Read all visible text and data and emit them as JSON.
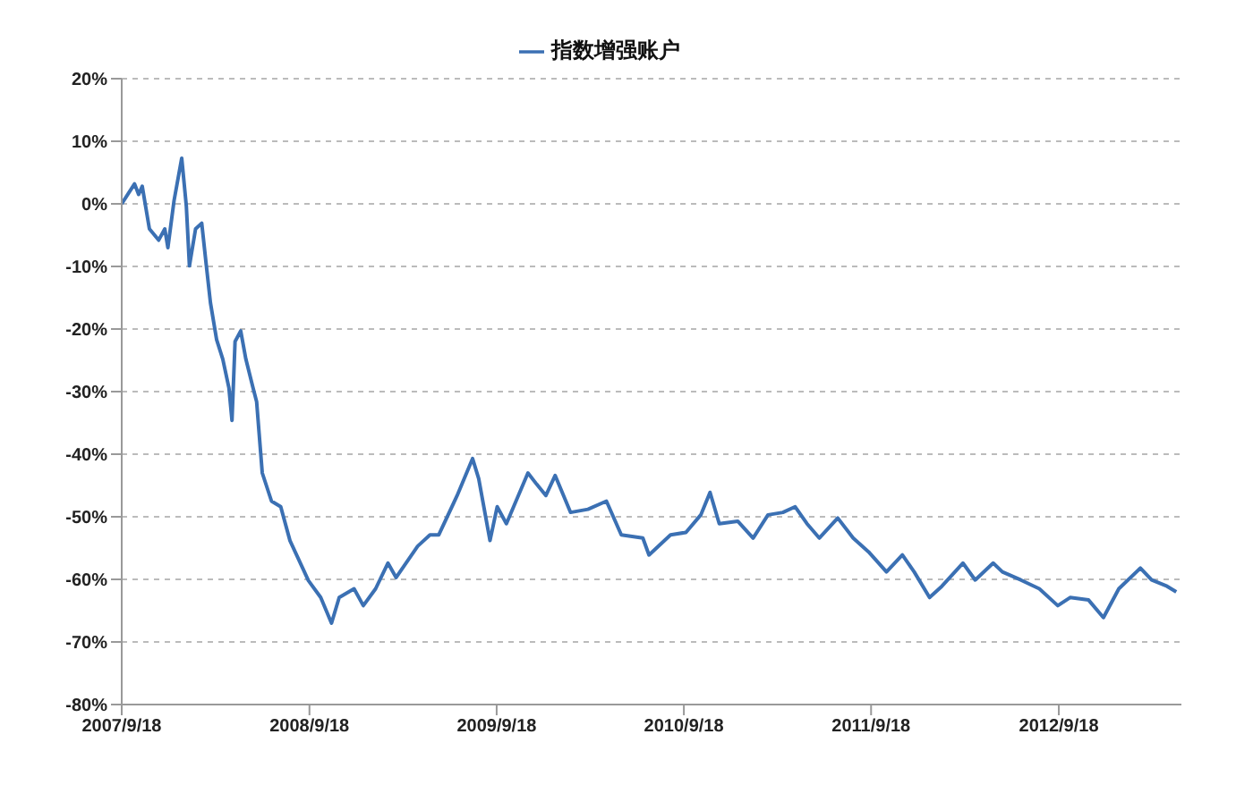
{
  "chart_data": {
    "type": "line",
    "x": [
      "2007-09-18",
      "2007-10-13",
      "2007-10-21",
      "2007-10-28",
      "2007-11-11",
      "2007-11-29",
      "2007-12-11",
      "2007-12-17",
      "2007-12-29",
      "2008-01-13",
      "2008-01-22",
      "2008-01-28",
      "2008-02-09",
      "2008-02-21",
      "2008-03-01",
      "2008-03-09",
      "2008-03-21",
      "2008-04-02",
      "2008-04-14",
      "2008-04-20",
      "2008-04-26",
      "2008-05-07",
      "2008-05-17",
      "2008-05-31",
      "2008-06-07",
      "2008-06-18",
      "2008-07-06",
      "2008-07-24",
      "2008-08-11",
      "2008-09-16",
      "2008-10-10",
      "2008-10-31",
      "2008-11-15",
      "2008-12-14",
      "2009-01-01",
      "2009-01-25",
      "2009-02-18",
      "2009-03-06",
      "2009-04-17",
      "2009-05-11",
      "2009-05-28",
      "2009-07-03",
      "2009-08-02",
      "2009-08-14",
      "2009-09-05",
      "2009-09-19",
      "2009-10-07",
      "2009-11-18",
      "2009-12-05",
      "2009-12-23",
      "2010-01-10",
      "2010-02-09",
      "2010-03-15",
      "2010-04-20",
      "2010-05-19",
      "2010-06-30",
      "2010-07-12",
      "2010-08-23",
      "2010-09-22",
      "2010-10-21",
      "2010-11-08",
      "2010-11-26",
      "2011-01-01",
      "2011-01-31",
      "2011-03-01",
      "2011-03-30",
      "2011-04-23",
      "2011-05-16",
      "2011-06-09",
      "2011-07-15",
      "2011-08-14",
      "2011-09-13",
      "2011-10-18",
      "2011-11-18",
      "2011-12-11",
      "2012-01-10",
      "2012-02-03",
      "2012-03-15",
      "2012-04-08",
      "2012-05-13",
      "2012-05-31",
      "2012-07-06",
      "2012-08-11",
      "2012-09-16",
      "2012-10-10",
      "2012-11-15",
      "2012-12-14",
      "2013-01-13",
      "2013-02-24",
      "2013-03-18",
      "2013-04-17",
      "2013-05-05"
    ],
    "series": [
      {
        "name": "指数增强账户",
        "color": "#3b70b3",
        "values": [
          0,
          3.2,
          1.5,
          2.8,
          -4,
          -5.8,
          -4,
          -7,
          0.5,
          7.3,
          -0.4,
          -9.9,
          -4,
          -3.1,
          -9.9,
          -15.8,
          -21.7,
          -24.8,
          -29.4,
          -34.6,
          -22,
          -20.3,
          -24.8,
          -29.4,
          -31.6,
          -43,
          -47.5,
          -48.4,
          -53.8,
          -60.2,
          -62.9,
          -67,
          -62.9,
          -61.5,
          -64.2,
          -61.5,
          -57.4,
          -59.7,
          -54.7,
          -52.9,
          -52.9,
          -46.6,
          -40.7,
          -43.9,
          -53.8,
          -48.4,
          -51.1,
          -43,
          -44.8,
          -46.6,
          -43.4,
          -49.3,
          -48.8,
          -47.5,
          -52.9,
          -53.4,
          -56.1,
          -52.9,
          -52.5,
          -49.7,
          -46.1,
          -51.1,
          -50.7,
          -53.4,
          -49.7,
          -49.3,
          -48.4,
          -51.1,
          -53.4,
          -50.2,
          -53.4,
          -55.6,
          -58.8,
          -56.1,
          -58.8,
          -62.9,
          -61.1,
          -57.4,
          -60.1,
          -57.4,
          -58.8,
          -60.1,
          -61.5,
          -64.2,
          -62.9,
          -63.3,
          -66.1,
          -61.5,
          -58.2,
          -60.1,
          -61.1,
          -62
        ]
      }
    ],
    "xlim": [
      "2007-09-18",
      "2013-05-15"
    ],
    "xticks": [
      {
        "value": "2007-09-18",
        "label": "2007/9/18"
      },
      {
        "value": "2008-09-18",
        "label": "2008/9/18"
      },
      {
        "value": "2009-09-18",
        "label": "2009/9/18"
      },
      {
        "value": "2010-09-18",
        "label": "2010/9/18"
      },
      {
        "value": "2011-09-18",
        "label": "2011/9/18"
      },
      {
        "value": "2012-09-18",
        "label": "2012/9/18"
      }
    ],
    "ylim": [
      -80,
      20
    ],
    "yticks": [
      {
        "value": 20,
        "label": "20%"
      },
      {
        "value": 10,
        "label": "10%"
      },
      {
        "value": 0,
        "label": "0%"
      },
      {
        "value": -10,
        "label": "-10%"
      },
      {
        "value": -20,
        "label": "-20%"
      },
      {
        "value": -30,
        "label": "-30%"
      },
      {
        "value": -40,
        "label": "-40%"
      },
      {
        "value": -50,
        "label": "-50%"
      },
      {
        "value": -60,
        "label": "-60%"
      },
      {
        "value": -70,
        "label": "-70%"
      },
      {
        "value": -80,
        "label": "-80%"
      }
    ],
    "grid": "y",
    "legend": "top",
    "marker": "none",
    "line_style": "solid"
  }
}
